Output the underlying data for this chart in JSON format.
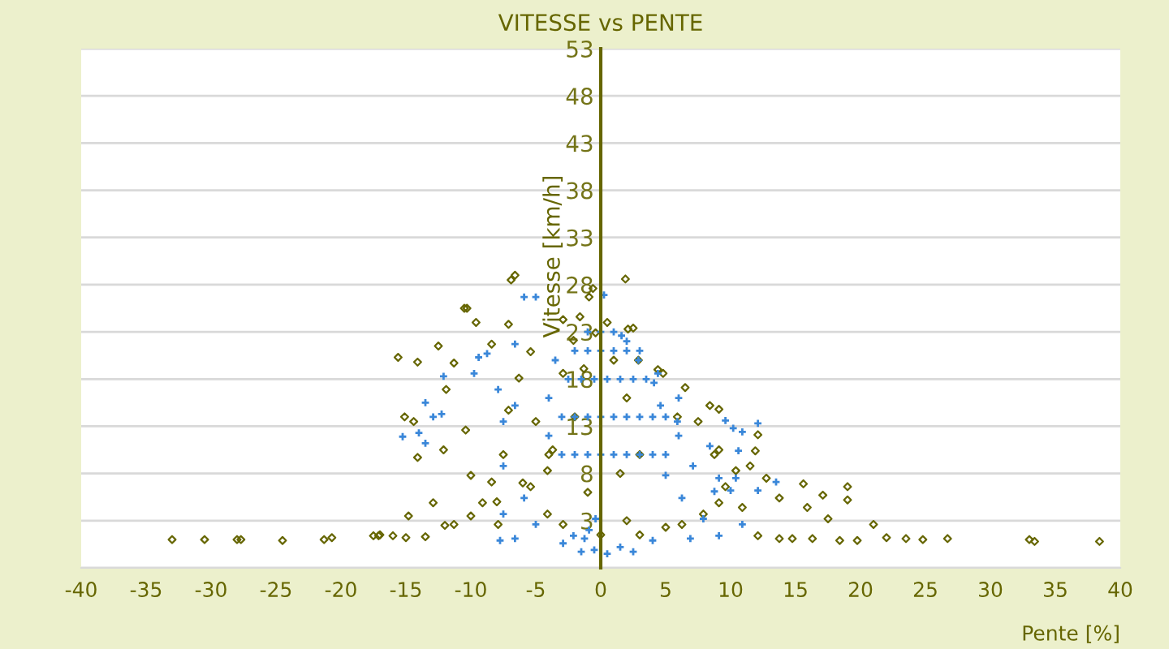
{
  "chart_data": {
    "type": "scatter",
    "title": "VITESSE vs PENTE",
    "xlabel": "Pente [%]",
    "ylabel": "Vitesse [km/h]",
    "xlim": [
      -40,
      40
    ],
    "xticks": [
      -40,
      -35,
      -30,
      -25,
      -20,
      -15,
      -10,
      -5,
      0,
      5,
      10,
      15,
      20,
      25,
      30,
      35,
      40
    ],
    "ylim": [
      -2,
      53
    ],
    "yticks": [
      53,
      48,
      43,
      38,
      33,
      28,
      23,
      18,
      13,
      8,
      3,
      {
        "value": -2,
        "label": null
      }
    ],
    "grid": "y",
    "series": [
      {
        "color": "#666600",
        "marker": "diamond",
        "x": [
          -33,
          -30.5,
          -28,
          -27.7,
          -24.5,
          -21.3,
          -20.7,
          -17.5,
          -16,
          -15,
          -13.5,
          22,
          23.5,
          24.8,
          26.7,
          33,
          33.4,
          38.4,
          -17,
          -12,
          -10,
          -8,
          -6,
          -4,
          -2,
          -6.6,
          -6.9,
          -10.5,
          -15.6,
          -14.1,
          -12.5,
          -10.3,
          -9.6,
          -8.4,
          -11.3,
          -11.9,
          -14.4,
          -15.1,
          -14.1,
          -12.1,
          -10.4,
          -10,
          -9.1,
          -12.9,
          -14.8,
          -17.1,
          -11.3,
          -7.9,
          -8.4,
          -7.5,
          -7.1,
          -6.3,
          -7.1,
          -5.4,
          -5,
          -5.4,
          -4.1,
          -2.9,
          -4.1,
          -3.7,
          -2.9,
          -1.6,
          -0.9,
          -0.6,
          -0.4,
          -2.1,
          -1.3,
          -2.9,
          2.1,
          2.5,
          2.9,
          1.9,
          4.4,
          4.8,
          6.5,
          8.4,
          9.1,
          12.1,
          11.9,
          11.5,
          12.75,
          13.75,
          15.6,
          15.9,
          17.1,
          19,
          19,
          21,
          17.5,
          16.3,
          14.75,
          13.75,
          12.1,
          18.4,
          19.75,
          10.9,
          9.1,
          7.9,
          6.25,
          5,
          9.6,
          10.4,
          8.75,
          7.5,
          5.9,
          9.1,
          2,
          0,
          3,
          1,
          0.5,
          -1,
          1.5,
          3,
          2
        ],
        "values": [
          1.0,
          1.0,
          1.0,
          1.0,
          0.9,
          1.0,
          1.2,
          1.4,
          1.4,
          1.2,
          1.3,
          1.2,
          1.1,
          1.0,
          1.1,
          1.0,
          0.8,
          0.8,
          1.5,
          2.5,
          3.5,
          5,
          7,
          10,
          14,
          29,
          28.5,
          25.5,
          20.3,
          19.8,
          21.5,
          25.5,
          24,
          21.7,
          19.7,
          16.9,
          13.5,
          14,
          9.7,
          10.5,
          12.6,
          7.8,
          4.9,
          4.9,
          3.5,
          1.4,
          2.6,
          2.6,
          7.1,
          10,
          14.7,
          18.1,
          23.8,
          20.9,
          13.5,
          6.6,
          3.7,
          2.6,
          8.3,
          10.5,
          24.3,
          24.6,
          26.7,
          27.6,
          22.9,
          22.1,
          19.1,
          18.6,
          23.3,
          23.4,
          20,
          28.6,
          19,
          18.6,
          17.1,
          15.2,
          14.8,
          12.1,
          10.4,
          8.8,
          7.5,
          5.4,
          6.9,
          4.4,
          5.7,
          6.6,
          5.2,
          2.6,
          3.2,
          1.1,
          1.1,
          1.1,
          1.4,
          0.9,
          0.9,
          4.4,
          4.9,
          3.7,
          2.6,
          2.3,
          6.6,
          8.3,
          10,
          13.5,
          14,
          10.5,
          3,
          1.5,
          1.5,
          20,
          24,
          6,
          8,
          10,
          16
        ]
      },
      {
        "color": "#3a87d9",
        "marker": "cross",
        "x": [
          -5,
          -5.9,
          0.25,
          -6.6,
          -9.4,
          -8.75,
          -12.1,
          -13.5,
          -15.25,
          -12.9,
          -12.25,
          -14,
          -13.5,
          -9.75,
          -7.9,
          -7.5,
          -6.6,
          -7.5,
          -7.5,
          -7.75,
          -6.6,
          -5.9,
          -5,
          -2.9,
          -2.1,
          -1.25,
          -0.4,
          -0.9,
          -1.5,
          0.5,
          2.5,
          -0.5,
          1.5,
          1.6,
          2.9,
          4.4,
          4.1,
          9.6,
          12.1,
          10.2,
          10.9,
          10.6,
          8.4,
          9.1,
          10.4,
          13.5,
          12.1,
          10,
          8.75,
          10.9,
          9.1,
          6.9,
          4,
          7.9,
          6.25,
          5,
          5.9,
          4.6,
          7.1,
          -3,
          -2,
          -1,
          0,
          1,
          2,
          3,
          4,
          5,
          -3,
          -2,
          -1,
          0,
          1,
          2,
          3,
          4,
          5,
          6,
          -2.5,
          -1.5,
          -0.5,
          0.5,
          1.5,
          2.5,
          3.5,
          -2,
          -1,
          0,
          1,
          2,
          3,
          -1,
          0,
          1,
          2,
          -4,
          6,
          -4,
          -3.5
        ],
        "values": [
          26.7,
          26.7,
          26.9,
          21.7,
          20.3,
          20.7,
          18.3,
          15.5,
          11.9,
          14,
          14.3,
          12.3,
          11.2,
          18.6,
          16.9,
          13.5,
          15.2,
          8.8,
          3.7,
          0.9,
          1.1,
          5.4,
          2.6,
          0.6,
          1.4,
          1.1,
          3.2,
          2.0,
          -0.3,
          -0.5,
          -0.3,
          -0.1,
          0.2,
          22.6,
          20,
          18.6,
          17.6,
          13.6,
          13.3,
          12.8,
          12.4,
          10.4,
          10.9,
          7.5,
          7.5,
          7.1,
          6.2,
          6.2,
          6.1,
          2.6,
          1.4,
          1.1,
          0.9,
          3.2,
          5.4,
          7.8,
          13.5,
          15.2,
          8.8,
          10,
          10,
          10,
          10,
          10,
          10,
          10,
          10,
          10,
          14,
          14,
          14,
          14,
          14,
          14,
          14,
          14,
          14,
          12,
          18,
          18,
          18,
          18,
          18,
          18,
          18,
          21,
          21,
          21,
          21,
          21,
          21,
          23,
          23,
          23,
          22,
          16,
          16,
          12,
          20
        ]
      }
    ]
  }
}
